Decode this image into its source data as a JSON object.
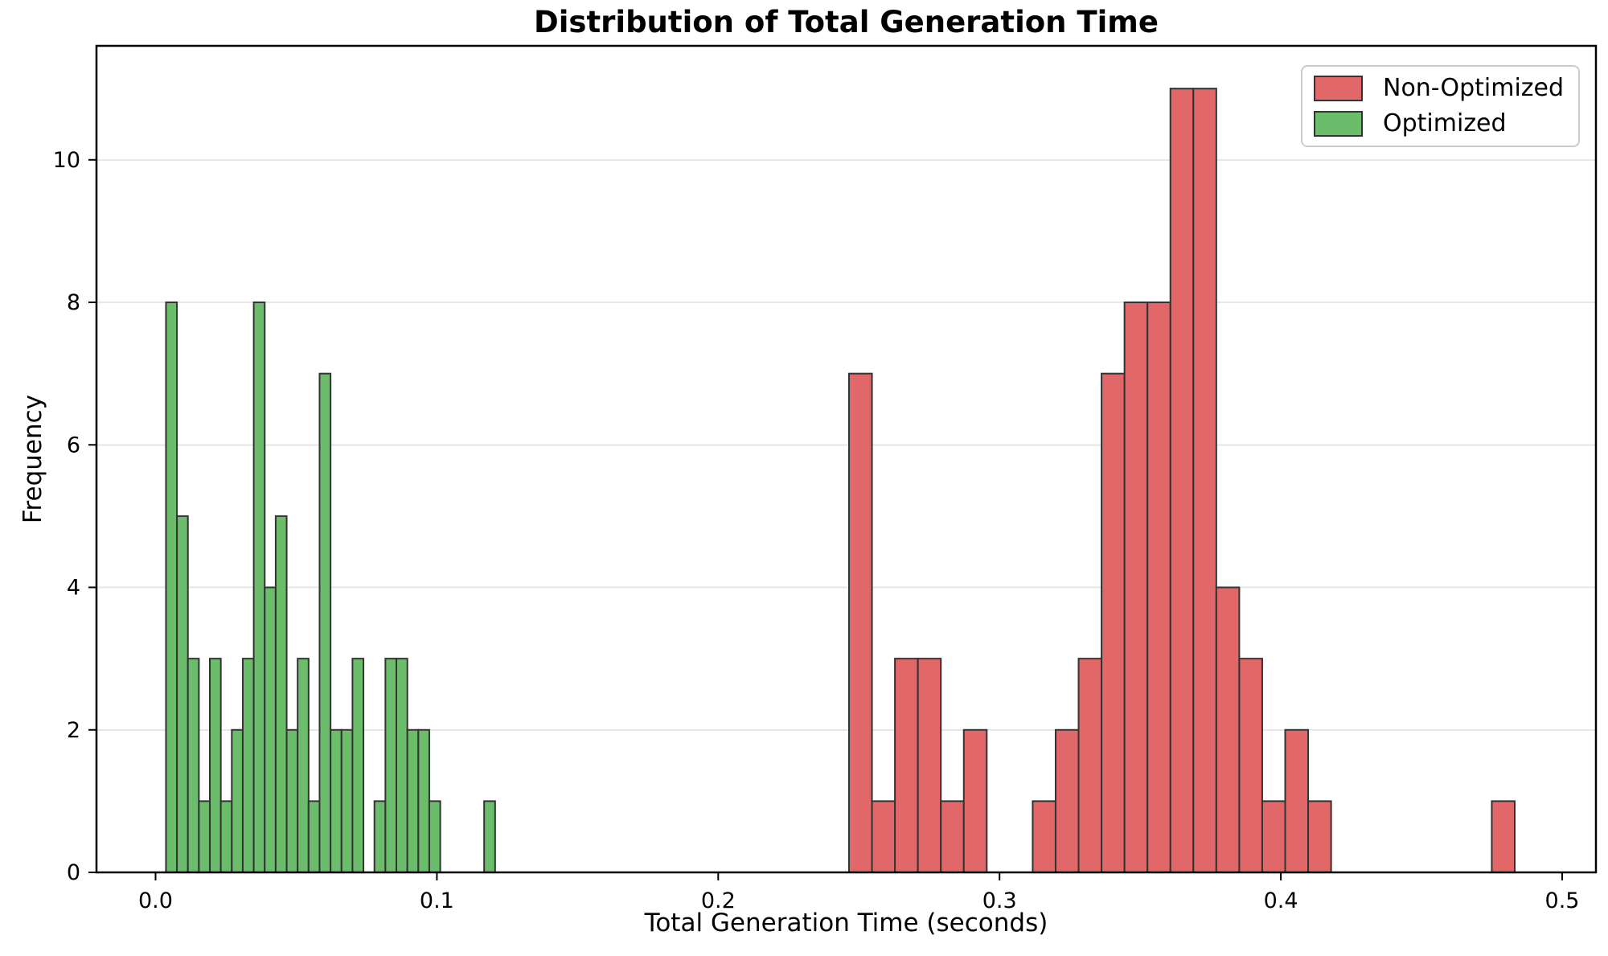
{
  "figure": {
    "title": "Distribution of Total Generation Time",
    "xlabel": "Total Generation Time (seconds)",
    "ylabel": "Frequency"
  },
  "legend": {
    "position": "upper-right",
    "items": [
      {
        "label": "Non-Optimized",
        "color": "#e26768",
        "edge_color": "#333333"
      },
      {
        "label": "Optimized",
        "color": "#6bbc6b",
        "edge_color": "#333333"
      }
    ]
  },
  "axes": {
    "x_ticks": [
      "0.0",
      "0.1",
      "0.2",
      "0.3",
      "0.4",
      "0.5"
    ],
    "x_tick_values": [
      0,
      0.1,
      0.2,
      0.3,
      0.4,
      0.5
    ],
    "y_ticks": [
      "0",
      "2",
      "4",
      "6",
      "8",
      "10"
    ],
    "y_tick_values": [
      0,
      2,
      4,
      6,
      8,
      10
    ],
    "grid_color": "#e6e6e6",
    "spine_color": "#000000"
  },
  "chart_data": {
    "type": "bar",
    "subtype": "histogram",
    "title": "Distribution of Total Generation Time",
    "xlabel": "Total Generation Time (seconds)",
    "ylabel": "Frequency",
    "xlim": [
      -0.021,
      0.512
    ],
    "ylim": [
      0,
      11.6
    ],
    "grid": "horizontal",
    "legend_position": "upper right",
    "series": [
      {
        "name": "Non-Optimized",
        "color": "#e26768",
        "edge_color": "#333333",
        "bin_start": 0.2465,
        "bin_width": 0.00816,
        "counts": [
          7,
          1,
          3,
          3,
          1,
          2,
          0,
          0,
          1,
          2,
          3,
          7,
          8,
          8,
          11,
          11,
          4,
          3,
          1,
          2,
          1,
          0,
          0,
          0,
          0,
          0,
          0,
          0,
          1,
          0
        ]
      },
      {
        "name": "Optimized",
        "color": "#6bbc6b",
        "edge_color": "#333333",
        "bin_start": 0.0037,
        "bin_width": 0.0039,
        "counts": [
          8,
          5,
          3,
          1,
          3,
          1,
          2,
          3,
          8,
          4,
          5,
          2,
          3,
          1,
          7,
          2,
          2,
          3,
          0,
          1,
          3,
          3,
          2,
          2,
          1,
          0,
          0,
          0,
          0,
          1
        ]
      }
    ]
  }
}
